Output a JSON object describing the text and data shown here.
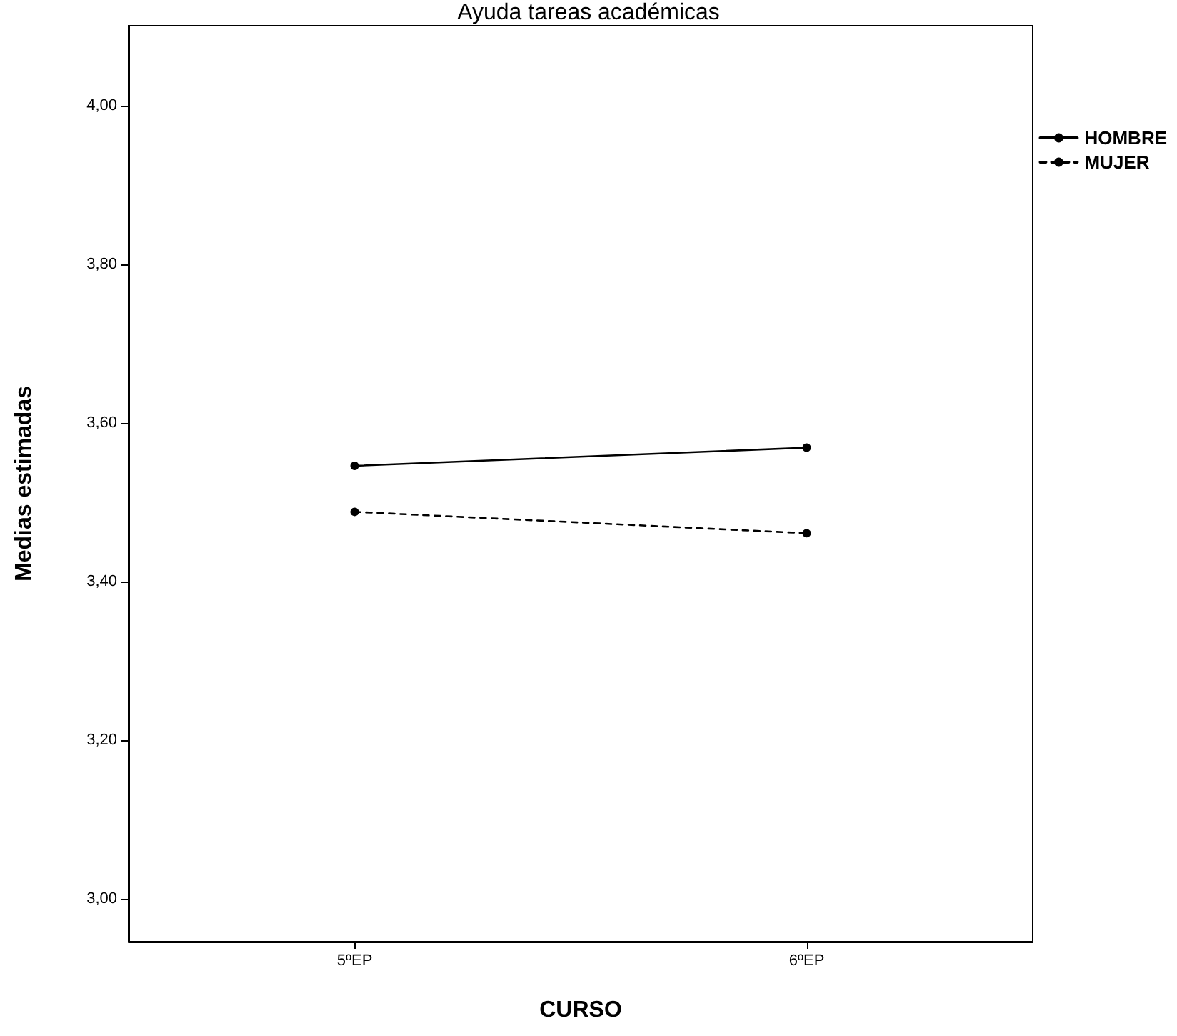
{
  "chart_data": {
    "type": "line",
    "title": "Ayuda tareas académicas",
    "xlabel": "CURSO",
    "ylabel": "Medias estimadas",
    "categories": [
      "5ºEP",
      "6ºEP"
    ],
    "series": [
      {
        "name": "HOMBRE",
        "color": "#000000",
        "values": [
          3.546,
          3.569
        ],
        "line_style": "solid"
      },
      {
        "name": "MUJER",
        "color": "#000000",
        "values": [
          3.488,
          3.461
        ],
        "line_style": "dashed"
      }
    ],
    "ylim": [
      2.946,
      4.101
    ],
    "yticks": [
      {
        "value": 3,
        "label": "3,00"
      },
      {
        "value": 3.2,
        "label": "3,20"
      },
      {
        "value": 3.4,
        "label": "3,40"
      },
      {
        "value": 3.6,
        "label": "3,60"
      },
      {
        "value": 3.8,
        "label": "3,80"
      },
      {
        "value": 4,
        "label": "4,00"
      }
    ],
    "grid": false,
    "legend": "top right",
    "marker": "circle"
  }
}
